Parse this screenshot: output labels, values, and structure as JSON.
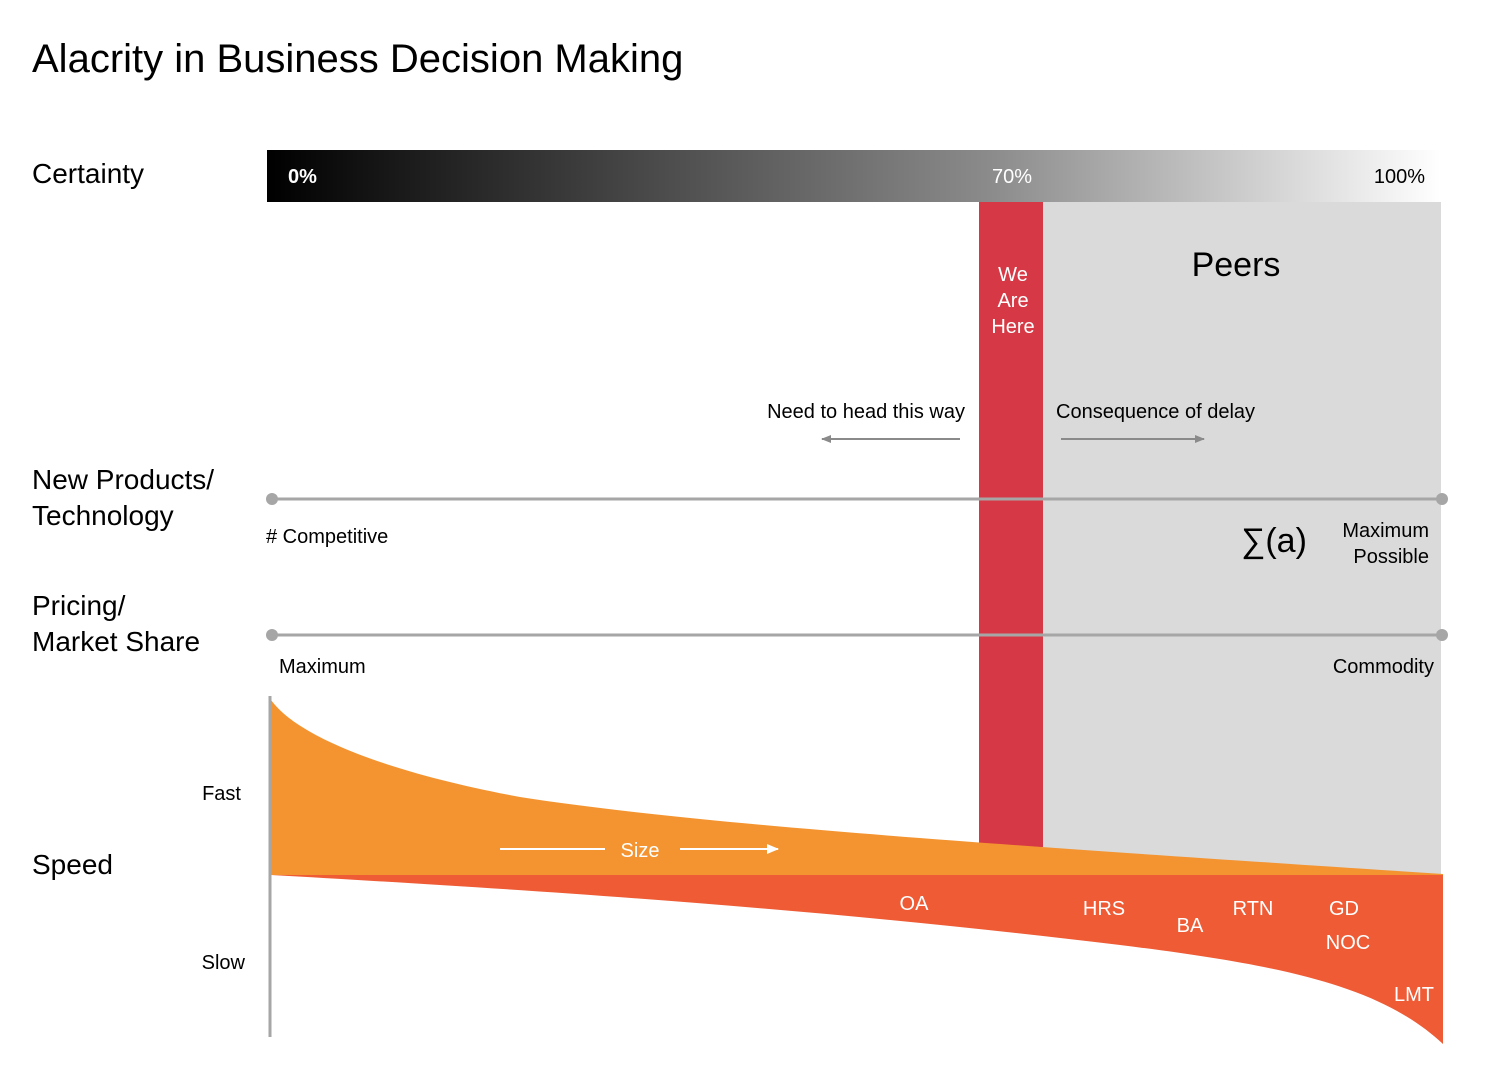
{
  "title": "Alacrity in Business Decision Making",
  "rows": {
    "certainty": "Certainty",
    "products_line1": "New Products/",
    "products_line2": "Technology",
    "pricing_line1": "Pricing/",
    "pricing_line2": "Market Share",
    "speed": "Speed"
  },
  "certainty_bar": {
    "start_label": "0%",
    "marker_label": "70%",
    "end_label": "100%",
    "marker_value": 0.7
  },
  "we_are_here": {
    "line1": "We",
    "line2": "Are",
    "line3": "Here",
    "color": "#d63945"
  },
  "peers": {
    "label": "Peers",
    "color": "#dadada"
  },
  "arrows": {
    "left_text": "Need to head this way",
    "right_text": "Consequence of delay"
  },
  "products_scale": {
    "left_label": "# Competitive",
    "sigma_label": "∑(a)",
    "right_line1": "Maximum",
    "right_line2": "Possible"
  },
  "pricing_scale": {
    "left_label": "Maximum",
    "right_label": "Commodity"
  },
  "speed_axis": {
    "fast": "Fast",
    "slow": "Slow"
  },
  "size_label": "Size",
  "companies": [
    "OA",
    "HRS",
    "BA",
    "RTN",
    "GD",
    "NOC",
    "LMT"
  ],
  "colors": {
    "fast_area": "#f39431",
    "slow_area": "#ef5b35",
    "scale_line": "#a6a6a6"
  }
}
